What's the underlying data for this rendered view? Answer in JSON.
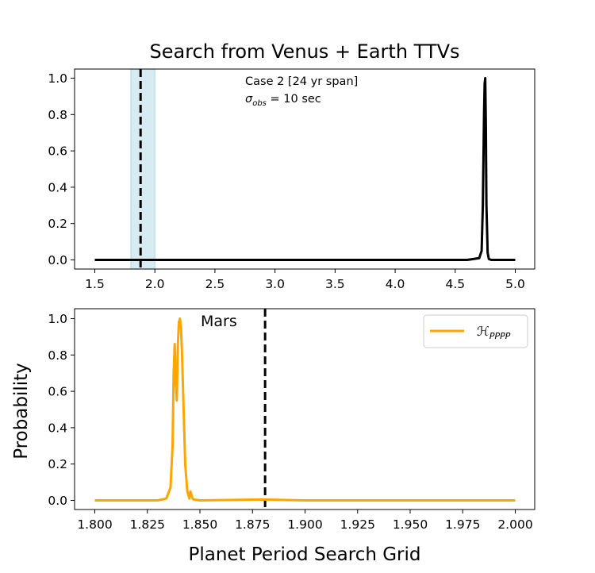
{
  "chart_data": [
    {
      "type": "line",
      "title": "Search from Venus + Earth TTVs",
      "xlabel": "",
      "ylabel": "",
      "xlim": [
        1.5,
        5.0
      ],
      "ylim": [
        0,
        1.0
      ],
      "xticks": [
        "1.5",
        "2.0",
        "2.5",
        "3.0",
        "3.5",
        "4.0",
        "4.5",
        "5.0"
      ],
      "yticks": [
        "0.0",
        "0.2",
        "0.4",
        "0.6",
        "0.8",
        "1.0"
      ],
      "annotation_line1": "Case 2 [24 yr span]",
      "annotation_line2_sym": "σ",
      "annotation_line2_sub": "obs",
      "annotation_line2_rest": " = 10 sec",
      "shaded_region": [
        1.8,
        2.0
      ],
      "shaded_color": "#add8e6",
      "reference_line_x": 1.881,
      "line_color": "#000000",
      "series": [
        {
          "x": [
            1.5,
            4.6,
            4.7,
            4.72,
            4.73,
            4.74,
            4.745,
            4.75,
            4.755,
            4.76,
            4.77,
            4.78,
            4.8,
            5.0
          ],
          "values": [
            0,
            0,
            0.01,
            0.05,
            0.3,
            0.8,
            0.97,
            1.0,
            0.75,
            0.3,
            0.04,
            0.005,
            0,
            0
          ]
        }
      ]
    },
    {
      "type": "line",
      "title": "",
      "xlabel": "Planet Period Search Grid",
      "ylabel": "Probability",
      "xlim": [
        1.8,
        2.0
      ],
      "ylim": [
        0,
        1.0
      ],
      "xticks": [
        "1.800",
        "1.825",
        "1.850",
        "1.875",
        "1.900",
        "1.925",
        "1.950",
        "1.975",
        "2.000"
      ],
      "yticks": [
        "0.0",
        "0.2",
        "0.4",
        "0.6",
        "0.8",
        "1.0"
      ],
      "reference_line_x": 1.881,
      "reference_label": "Mars",
      "legend_placement": "top-right",
      "line_color": "#ffa500",
      "series": [
        {
          "name_sym": "ℋ",
          "name_sub": "PPPP",
          "x": [
            1.8,
            1.83,
            1.834,
            1.836,
            1.837,
            1.8375,
            1.838,
            1.8385,
            1.839,
            1.8395,
            1.84,
            1.8405,
            1.841,
            1.8415,
            1.842,
            1.8425,
            1.843,
            1.844,
            1.845,
            1.8455,
            1.846,
            1.8465,
            1.847,
            1.85,
            1.88,
            1.9,
            2.0
          ],
          "values": [
            0,
            0,
            0.01,
            0.07,
            0.3,
            0.7,
            0.86,
            0.65,
            0.55,
            0.85,
            0.98,
            1.0,
            0.95,
            0.8,
            0.6,
            0.4,
            0.2,
            0.05,
            0.01,
            0.05,
            0.03,
            0.01,
            0.005,
            0,
            0.005,
            0,
            0
          ]
        }
      ]
    }
  ]
}
